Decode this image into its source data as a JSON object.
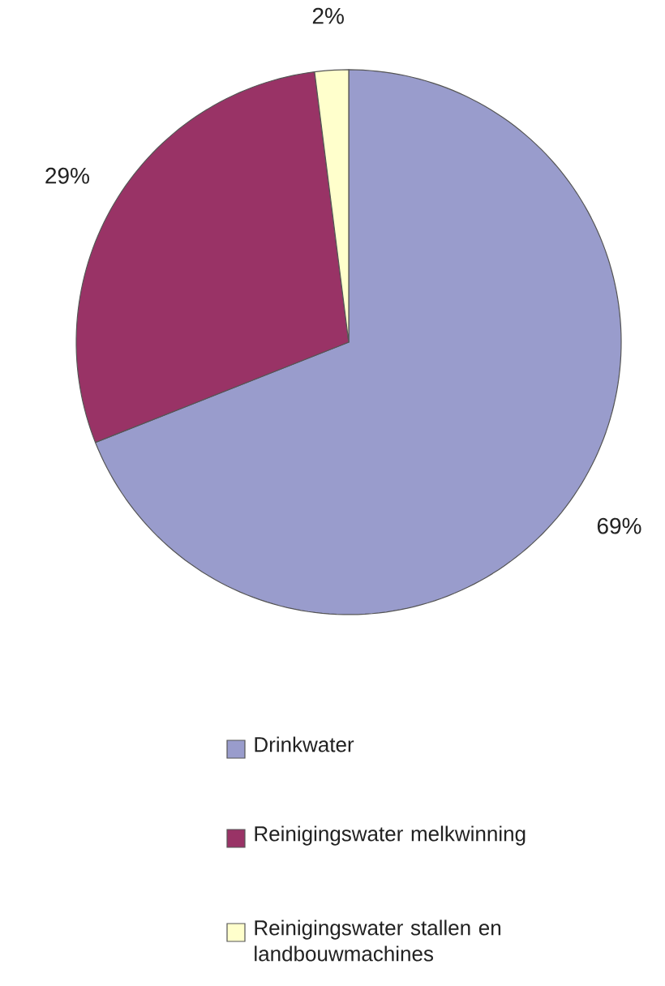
{
  "chart_data": {
    "type": "pie",
    "categories": [
      "Drinkwater",
      "Reinigingswater melkwinning",
      "Reinigingswater stallen en landbouwmachines"
    ],
    "values": [
      69,
      29,
      2
    ],
    "value_labels": [
      "69%",
      "29%",
      "2%"
    ],
    "colors": [
      "#999ccc",
      "#993366",
      "#ffffcc"
    ],
    "legend": "bottom"
  }
}
